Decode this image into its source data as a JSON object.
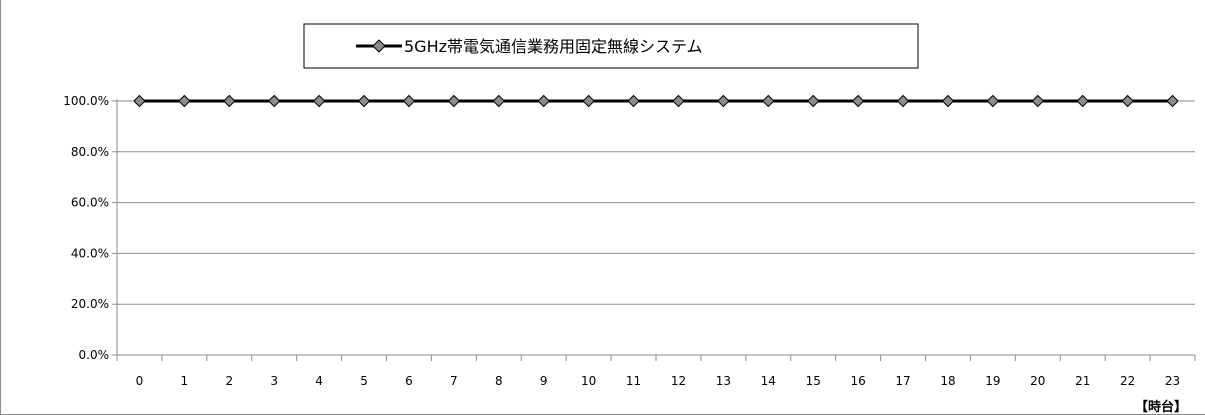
{
  "chart_data": {
    "type": "line",
    "x_unit_label": "【時台】",
    "categories": [
      "0",
      "1",
      "2",
      "3",
      "4",
      "5",
      "6",
      "7",
      "8",
      "9",
      "10",
      "11",
      "12",
      "13",
      "14",
      "15",
      "16",
      "17",
      "18",
      "19",
      "20",
      "21",
      "22",
      "23"
    ],
    "series": [
      {
        "name": "5GHz帯電気通信業務用固定無線システム",
        "values": [
          100,
          100,
          100,
          100,
          100,
          100,
          100,
          100,
          100,
          100,
          100,
          100,
          100,
          100,
          100,
          100,
          100,
          100,
          100,
          100,
          100,
          100,
          100,
          100
        ],
        "color": "#000000",
        "marker": "diamond",
        "marker_color": "#8c8c8c"
      }
    ],
    "y_ticks": [
      "0.0%",
      "20.0%",
      "40.0%",
      "60.0%",
      "80.0%",
      "100.0%"
    ],
    "ylim": [
      0,
      100
    ],
    "y_format": "percent",
    "grid": true,
    "legend_position": "top"
  }
}
